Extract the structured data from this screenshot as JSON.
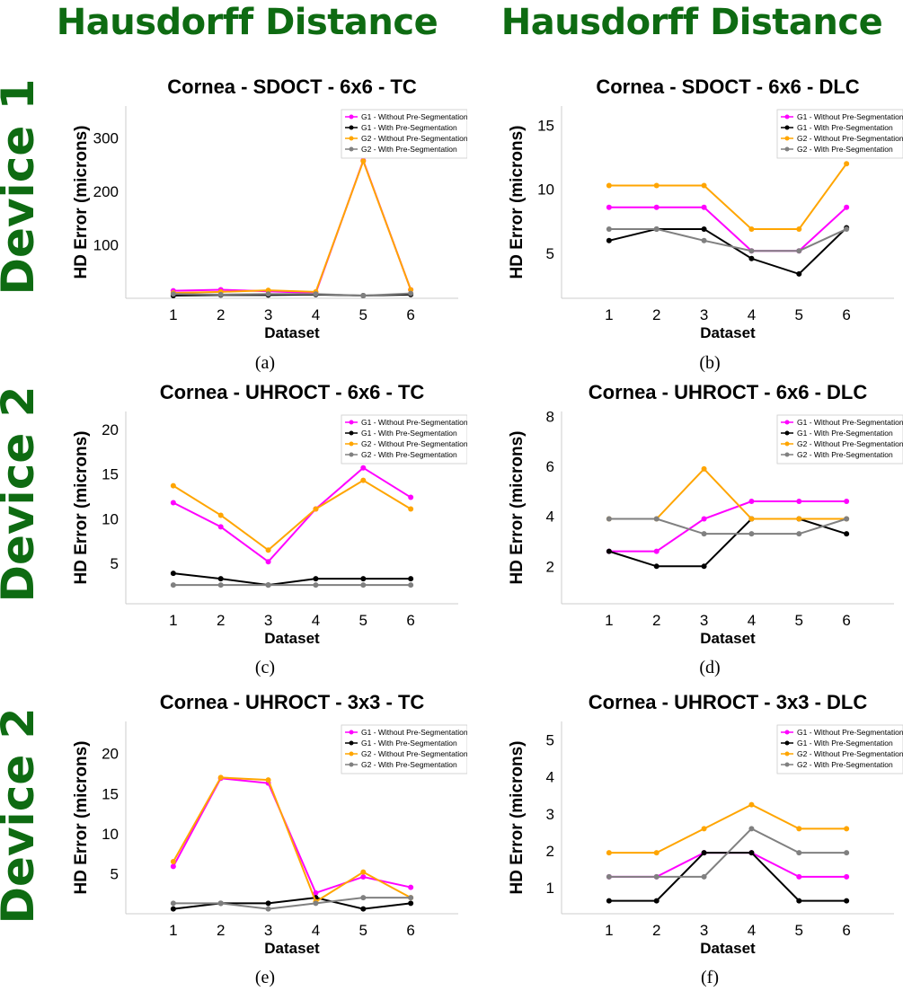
{
  "column_headers": [
    "Hausdorff Distance",
    "Hausdorff Distance"
  ],
  "row_labels": [
    "Device 1",
    "Device 2",
    "Device 2"
  ],
  "colors": {
    "header_green": "#0e6b12",
    "G1_without": "#ff00ff",
    "G1_with": "#000000",
    "G2_without": "#ffa500",
    "G2_with": "#808080"
  },
  "chart_data": [
    {
      "type": "line",
      "caption": "(a)",
      "title": "Cornea - SDOCT - 6x6 - TC",
      "xlabel": "Dataset",
      "ylabel": "HD Error (microns)",
      "x": [
        1,
        2,
        3,
        4,
        5,
        6
      ],
      "xlim": [
        0,
        7
      ],
      "ylim": [
        0,
        360
      ],
      "yticks": [
        100,
        200,
        300
      ],
      "legend_position": "top-right",
      "series": [
        {
          "name": "G1 - Without Pre-Segmentation",
          "color": "#ff00ff",
          "values": [
            14,
            16,
            13,
            10,
            258,
            16
          ]
        },
        {
          "name": "G1 - With Pre-Segmentation",
          "color": "#000000",
          "values": [
            5,
            6,
            6,
            7,
            5,
            7
          ]
        },
        {
          "name": "G2 - Without Pre-Segmentation",
          "color": "#ffa500",
          "values": [
            10,
            12,
            15,
            12,
            257,
            16
          ]
        },
        {
          "name": "G2 - With Pre-Segmentation",
          "color": "#808080",
          "values": [
            8,
            7,
            8,
            8,
            5,
            9
          ]
        }
      ]
    },
    {
      "type": "line",
      "caption": "(b)",
      "title": "Cornea - SDOCT - 6x6 - DLC",
      "xlabel": "Dataset",
      "ylabel": "HD Error (microns)",
      "x": [
        1,
        2,
        3,
        4,
        5,
        6
      ],
      "xlim": [
        0,
        7
      ],
      "ylim": [
        1.5,
        16.5
      ],
      "yticks": [
        5,
        10,
        15
      ],
      "legend_position": "top-right",
      "series": [
        {
          "name": "G1 - Without Pre-Segmentation",
          "color": "#ff00ff",
          "values": [
            8.6,
            8.6,
            8.6,
            5.2,
            5.2,
            8.6
          ]
        },
        {
          "name": "G1 - With Pre-Segmentation",
          "color": "#000000",
          "values": [
            6.0,
            6.9,
            6.9,
            4.6,
            3.4,
            7.0
          ]
        },
        {
          "name": "G2 - Without Pre-Segmentation",
          "color": "#ffa500",
          "values": [
            10.3,
            10.3,
            10.3,
            6.9,
            6.9,
            12.0
          ]
        },
        {
          "name": "G2 - With Pre-Segmentation",
          "color": "#808080",
          "values": [
            6.9,
            6.9,
            6.0,
            5.2,
            5.2,
            6.9
          ]
        }
      ]
    },
    {
      "type": "line",
      "caption": "(c)",
      "title": "Cornea - UHROCT - 6x6 - TC",
      "xlabel": "Dataset",
      "ylabel": "HD Error (microns)",
      "x": [
        1,
        2,
        3,
        4,
        5,
        6
      ],
      "xlim": [
        0,
        7
      ],
      "ylim": [
        0.5,
        22
      ],
      "yticks": [
        5,
        10,
        15,
        20
      ],
      "legend_position": "top-right",
      "series": [
        {
          "name": "G1 - Without Pre-Segmentation",
          "color": "#ff00ff",
          "values": [
            11.8,
            9.1,
            5.2,
            11.1,
            15.7,
            12.4
          ]
        },
        {
          "name": "G1 - With Pre-Segmentation",
          "color": "#000000",
          "values": [
            3.9,
            3.3,
            2.6,
            3.3,
            3.3,
            3.3
          ]
        },
        {
          "name": "G2 - Without Pre-Segmentation",
          "color": "#ffa500",
          "values": [
            13.7,
            10.4,
            6.5,
            11.1,
            14.3,
            11.1
          ]
        },
        {
          "name": "G2 - With Pre-Segmentation",
          "color": "#808080",
          "values": [
            2.6,
            2.6,
            2.6,
            2.6,
            2.6,
            2.6
          ]
        }
      ]
    },
    {
      "type": "line",
      "caption": "(d)",
      "title": "Cornea - UHROCT - 6x6 - DLC",
      "xlabel": "Dataset",
      "ylabel": "HD Error (microns)",
      "x": [
        1,
        2,
        3,
        4,
        5,
        6
      ],
      "xlim": [
        0,
        7
      ],
      "ylim": [
        0.5,
        8.2
      ],
      "yticks": [
        2,
        4,
        6,
        8
      ],
      "legend_position": "top-right",
      "series": [
        {
          "name": "G1 - Without Pre-Segmentation",
          "color": "#ff00ff",
          "values": [
            2.6,
            2.6,
            3.9,
            4.6,
            4.6,
            4.6
          ]
        },
        {
          "name": "G1 - With Pre-Segmentation",
          "color": "#000000",
          "values": [
            2.6,
            2.0,
            2.0,
            3.9,
            3.9,
            3.3
          ]
        },
        {
          "name": "G2 - Without Pre-Segmentation",
          "color": "#ffa500",
          "values": [
            3.9,
            3.9,
            5.9,
            3.9,
            3.9,
            3.9
          ]
        },
        {
          "name": "G2 - With Pre-Segmentation",
          "color": "#808080",
          "values": [
            3.9,
            3.9,
            3.3,
            3.3,
            3.3,
            3.9
          ]
        }
      ]
    },
    {
      "type": "line",
      "caption": "(e)",
      "title": "Cornea - UHROCT - 3x3 - TC",
      "xlabel": "Dataset",
      "ylabel": "HD Error (microns)",
      "x": [
        1,
        2,
        3,
        4,
        5,
        6
      ],
      "xlim": [
        0,
        7
      ],
      "ylim": [
        0,
        24
      ],
      "yticks": [
        5,
        10,
        15,
        20
      ],
      "legend_position": "top-right",
      "series": [
        {
          "name": "G1 - Without Pre-Segmentation",
          "color": "#ff00ff",
          "values": [
            5.9,
            16.9,
            16.3,
            2.6,
            4.6,
            3.3
          ]
        },
        {
          "name": "G1 - With Pre-Segmentation",
          "color": "#000000",
          "values": [
            0.6,
            1.3,
            1.3,
            2.0,
            0.6,
            1.3
          ]
        },
        {
          "name": "G2 - Without Pre-Segmentation",
          "color": "#ffa500",
          "values": [
            6.5,
            17.0,
            16.7,
            1.5,
            5.2,
            2.0
          ]
        },
        {
          "name": "G2 - With Pre-Segmentation",
          "color": "#808080",
          "values": [
            1.3,
            1.3,
            0.6,
            1.3,
            2.0,
            2.0
          ]
        }
      ]
    },
    {
      "type": "line",
      "caption": "(f)",
      "title": "Cornea - UHROCT - 3x3 - DLC",
      "xlabel": "Dataset",
      "ylabel": "HD Error (microns)",
      "x": [
        1,
        2,
        3,
        4,
        5,
        6
      ],
      "xlim": [
        0,
        7
      ],
      "ylim": [
        0.3,
        5.5
      ],
      "yticks": [
        1,
        2,
        3,
        4,
        5
      ],
      "legend_position": "top-right",
      "series": [
        {
          "name": "G1 - Without Pre-Segmentation",
          "color": "#ff00ff",
          "values": [
            1.3,
            1.3,
            1.95,
            1.95,
            1.3,
            1.3
          ]
        },
        {
          "name": "G1 - With Pre-Segmentation",
          "color": "#000000",
          "values": [
            0.65,
            0.65,
            1.95,
            1.95,
            0.65,
            0.65
          ]
        },
        {
          "name": "G2 - Without Pre-Segmentation",
          "color": "#ffa500",
          "values": [
            1.95,
            1.95,
            2.6,
            3.25,
            2.6,
            2.6
          ]
        },
        {
          "name": "G2 - With Pre-Segmentation",
          "color": "#808080",
          "values": [
            1.3,
            1.3,
            1.3,
            2.6,
            1.95,
            1.95
          ]
        }
      ]
    }
  ]
}
